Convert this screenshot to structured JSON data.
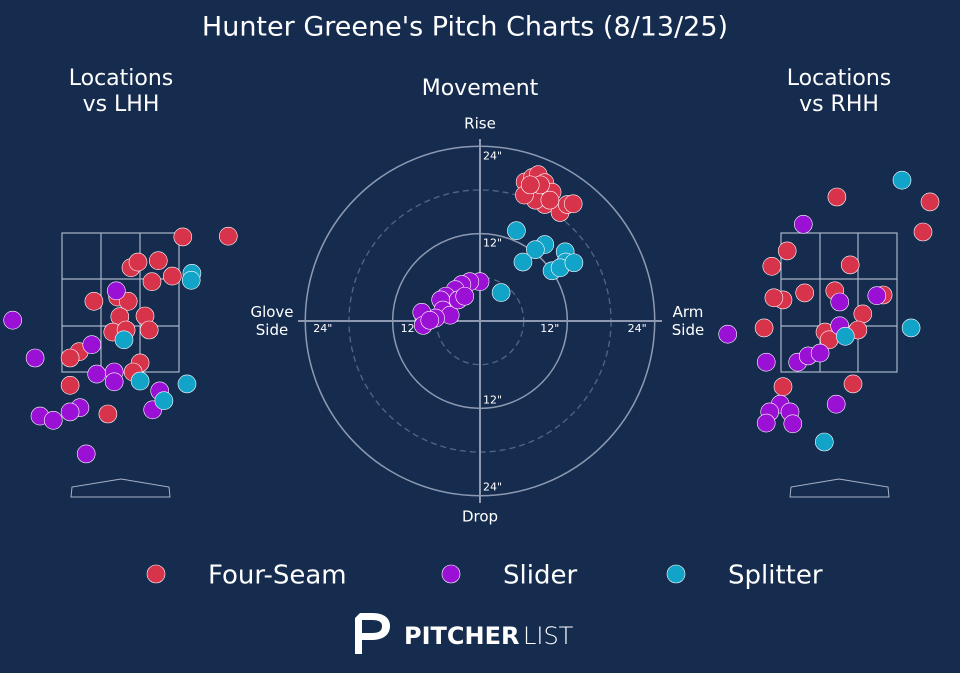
{
  "title": "Hunter Greene's Pitch Charts (8/13/25)",
  "brand": {
    "bold": "PITCHER",
    "light": "LIST"
  },
  "chart_data": [
    {
      "type": "scatter",
      "title": "Locations\nvs LHH",
      "xlim": [
        -1.7,
        1.7
      ],
      "ylim": [
        -0.3,
        4.8
      ],
      "series": [
        {
          "name": "Four-Seam",
          "color": "#d7334a",
          "x": [
            0.89,
            1.54,
            0.15,
            0.25,
            0.54,
            0.74,
            0.45,
            -0.38,
            -0.04,
            0.11,
            -0.01,
            0.35,
            -0.11,
            0.08,
            0.41,
            -0.59,
            -0.72,
            0.28,
            0.18,
            -0.72,
            -0.18
          ],
          "values": [
            3.43,
            3.44,
            2.99,
            3.07,
            3.09,
            2.87,
            2.79,
            2.51,
            2.57,
            2.51,
            2.29,
            2.3,
            2.07,
            2.1,
            2.1,
            1.79,
            1.7,
            1.63,
            1.5,
            1.31,
            0.9
          ]
        },
        {
          "name": "Slider",
          "color": "#9a10d4",
          "x": [
            -1.54,
            -1.22,
            -0.06,
            -0.41,
            -0.09,
            -0.34,
            -0.09,
            0.56,
            0.46,
            -0.58,
            -0.72,
            -1.15,
            -0.96,
            -0.49
          ],
          "values": [
            2.24,
            1.7,
            2.66,
            1.89,
            1.5,
            1.47,
            1.36,
            1.23,
            0.96,
            0.99,
            0.93,
            0.87,
            0.81,
            0.33
          ]
        },
        {
          "name": "Splitter",
          "color": "#12a3c8",
          "x": [
            1.02,
            1.01,
            0.05,
            0.28,
            0.95,
            0.62
          ],
          "values": [
            2.91,
            2.81,
            1.96,
            1.37,
            1.33,
            1.09
          ]
        }
      ]
    },
    {
      "type": "movement",
      "title": "Movement",
      "top_label": "Rise",
      "bottom_label": "Drop",
      "left_label": "Glove\nSide",
      "right_label": "Arm\nSide",
      "xlim": [
        -25,
        25
      ],
      "ylim": [
        -25,
        25
      ],
      "xticks": [
        {
          "value": -24,
          "label": "24\""
        },
        {
          "value": -12,
          "label": "12\""
        },
        {
          "value": 12,
          "label": "12\""
        },
        {
          "value": 24,
          "label": "24\""
        }
      ],
      "yticks": [
        {
          "value": -24,
          "label": "24\""
        },
        {
          "value": -12,
          "label": "12\""
        },
        {
          "value": 12,
          "label": "12\""
        },
        {
          "value": 24,
          "label": "24\""
        }
      ],
      "dashed_rings": [
        6,
        18
      ],
      "series": [
        {
          "name": "Four-Seam",
          "color": "#d7334a",
          "x": [
            6.2,
            7.2,
            8.0,
            8.9,
            6.6,
            7.8,
            9.9,
            8.9,
            7.6,
            11.0,
            12.0,
            12.8,
            6.1,
            8.3,
            9.6,
            6.9
          ],
          "values": [
            19.1,
            19.7,
            20.1,
            19.0,
            17.6,
            18.3,
            17.7,
            16.0,
            16.6,
            14.9,
            16.0,
            16.1,
            17.3,
            18.7,
            16.6,
            18.7
          ]
        },
        {
          "name": "Slider",
          "color": "#9a10d4",
          "x": [
            0,
            -1.4,
            -2.5,
            -3.4,
            -4.7,
            -5.4,
            -5.1,
            -4.1,
            -6.1,
            -7.7,
            -8.0,
            -7.8,
            -6.9,
            -3.0,
            -2.1
          ],
          "values": [
            5.4,
            5.4,
            5.0,
            4.3,
            3.4,
            2.9,
            1.5,
            0.8,
            0.4,
            0.4,
            1.2,
            -0.6,
            0.1,
            2.9,
            3.4
          ]
        },
        {
          "name": "Splitter",
          "color": "#12a3c8",
          "x": [
            5.0,
            8.9,
            7.6,
            11.7,
            11.8,
            5.9,
            9.9,
            11.0,
            12.9,
            2.9
          ],
          "values": [
            12.4,
            10.5,
            9.8,
            9.5,
            8.1,
            8.1,
            6.9,
            7.3,
            8.0,
            3.9
          ]
        }
      ]
    },
    {
      "type": "scatter",
      "title": "Locations\nvs RHH",
      "xlim": [
        -1.7,
        1.7
      ],
      "ylim": [
        -0.3,
        4.8
      ],
      "series": [
        {
          "name": "Four-Seam",
          "color": "#d7334a",
          "x": [
            -0.03,
            1.3,
            1.2,
            -0.74,
            0.16,
            -0.96,
            -0.49,
            -0.8,
            -0.93,
            -0.06,
            0.63,
            0.34,
            -1.07,
            -0.2,
            0.27,
            -0.14,
            -0.8,
            0.2
          ],
          "values": [
            4.0,
            3.93,
            3.5,
            3.23,
            3.03,
            3.01,
            2.63,
            2.53,
            2.56,
            2.66,
            2.6,
            2.33,
            2.13,
            2.07,
            2.1,
            1.96,
            1.29,
            1.33
          ]
        },
        {
          "name": "Slider",
          "color": "#9a10d4",
          "x": [
            -0.51,
            0.01,
            0.54,
            0.01,
            -1.59,
            -1.04,
            -0.59,
            -0.44,
            -0.27,
            -0.84,
            -0.99,
            -0.7,
            -1.04,
            -0.66,
            -0.04
          ],
          "values": [
            3.61,
            2.5,
            2.59,
            2.16,
            2.04,
            1.64,
            1.64,
            1.73,
            1.77,
            1.04,
            0.93,
            0.93,
            0.77,
            0.76,
            1.04
          ]
        },
        {
          "name": "Splitter",
          "color": "#12a3c8",
          "x": [
            0.9,
            1.03,
            0.09,
            -0.21
          ],
          "values": [
            4.24,
            2.13,
            2.01,
            0.5
          ]
        }
      ]
    }
  ]
}
